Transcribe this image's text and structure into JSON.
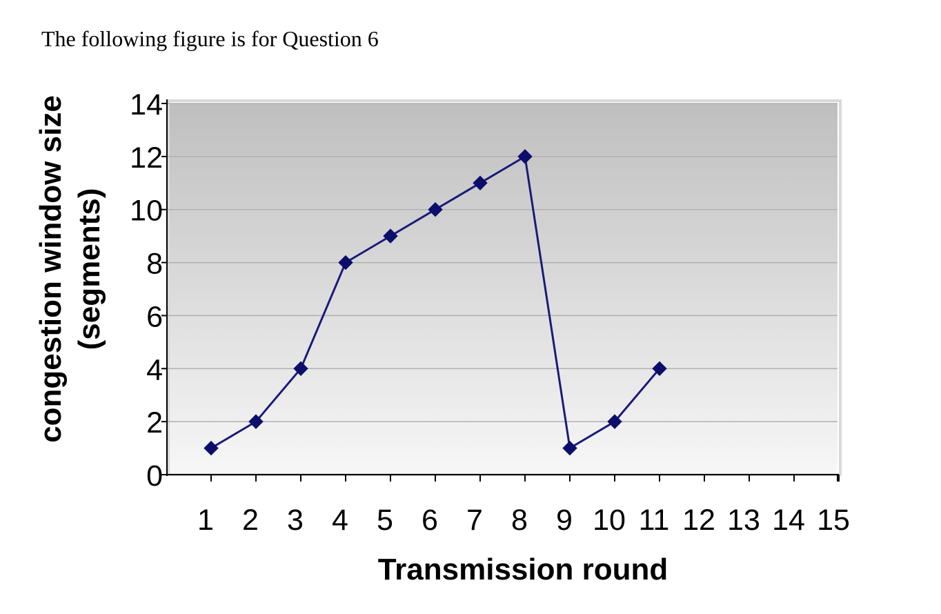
{
  "caption": "The following figure is for Question 6",
  "chart_data": {
    "type": "line",
    "x": [
      1,
      2,
      3,
      4,
      5,
      6,
      7,
      8,
      9,
      10,
      11
    ],
    "series": [
      {
        "values": [
          1,
          2,
          4,
          8,
          9,
          10,
          11,
          12,
          1,
          2,
          4
        ]
      }
    ],
    "categories": [
      "1",
      "2",
      "3",
      "4",
      "5",
      "6",
      "7",
      "8",
      "9",
      "10",
      "11",
      "12",
      "13",
      "14",
      "15"
    ],
    "xlabel": "Transmission round",
    "ylabel_lines": [
      "congestion window size",
      "(segments)"
    ],
    "ylim": [
      0,
      14
    ],
    "yticks": [
      0,
      2,
      4,
      6,
      8,
      10,
      12,
      14
    ],
    "grid": true,
    "colors": {
      "line": "#1a1a7a",
      "marker": "#0d0d6b",
      "plot_bg_top": "#bfbfbf",
      "plot_bg_bottom": "#f7f7f7",
      "gridline": "#b0b0b0"
    }
  }
}
